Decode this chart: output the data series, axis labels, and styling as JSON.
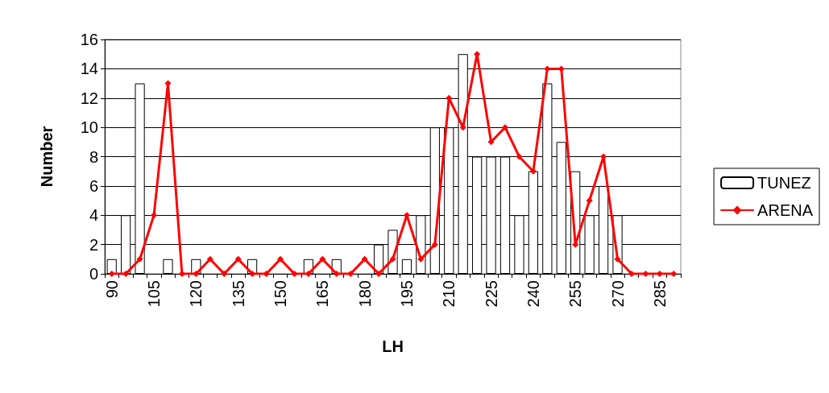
{
  "chart_data": {
    "type": "bar",
    "xlabel": "LH",
    "ylabel": "Number",
    "categories": [
      "90",
      null,
      null,
      "105",
      null,
      null,
      "120",
      null,
      null,
      "135",
      null,
      null,
      "150",
      null,
      null,
      "165",
      null,
      null,
      "180",
      null,
      null,
      "195",
      null,
      null,
      "210",
      null,
      null,
      "225",
      null,
      null,
      "240",
      null,
      null,
      "255",
      null,
      null,
      "270",
      null,
      null,
      "285",
      null
    ],
    "series": [
      {
        "name": "TUNEZ",
        "color": "#ffffff",
        "values": [
          1,
          4,
          13,
          0,
          1,
          0,
          1,
          0,
          0,
          0,
          1,
          0,
          0,
          0,
          1,
          0,
          1,
          0,
          0,
          2,
          3,
          1,
          4,
          10,
          10,
          15,
          8,
          8,
          8,
          4,
          7,
          13,
          9,
          7,
          4,
          6,
          4,
          0,
          0,
          0,
          0
        ]
      },
      {
        "name": "ARENA",
        "type": "line",
        "color": "#ff0000",
        "values": [
          0,
          0,
          1,
          4,
          13,
          0,
          0,
          1,
          0,
          1,
          0,
          0,
          1,
          0,
          0,
          1,
          0,
          0,
          1,
          0,
          1,
          4,
          1,
          2,
          12,
          10,
          15,
          9,
          10,
          8,
          7,
          14,
          14,
          2,
          5,
          8,
          1,
          0,
          0,
          0,
          0
        ]
      }
    ],
    "ylim": [
      0,
      16
    ],
    "yticks": [
      0,
      2,
      4,
      6,
      8,
      10,
      12,
      14,
      16
    ],
    "grid": "y",
    "legend": "right",
    "marker": "diamond",
    "line_style": "solid"
  }
}
